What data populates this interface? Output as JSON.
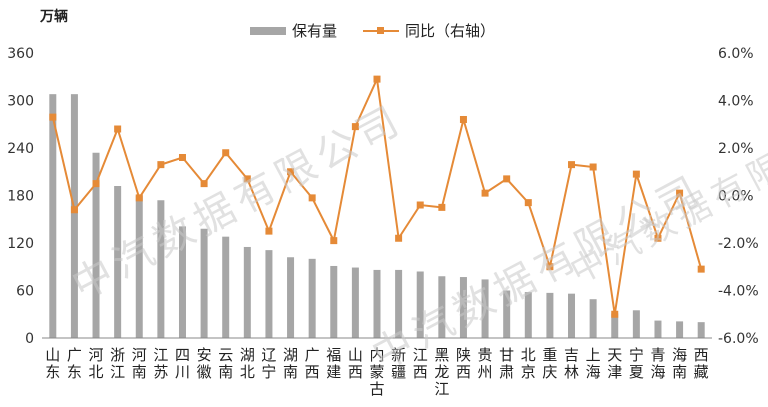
{
  "chart_data": {
    "type": "bar+line",
    "unit_label": "万辆",
    "categories": [
      "山东",
      "广东",
      "河北",
      "浙江",
      "河南",
      "江苏",
      "四川",
      "安徽",
      "云南",
      "湖北",
      "辽宁",
      "湖南",
      "广西",
      "福建",
      "山西",
      "内蒙古",
      "新疆",
      "江西",
      "黑龙江",
      "陕西",
      "贵州",
      "甘肃",
      "北京",
      "重庆",
      "吉林",
      "上海",
      "天津",
      "宁夏",
      "青海",
      "海南",
      "西藏"
    ],
    "series": [
      {
        "name": "保有量",
        "type": "bar",
        "axis": "left",
        "values": [
          308,
          308,
          234,
          192,
          180,
          174,
          141,
          138,
          128,
          115,
          111,
          102,
          100,
          91,
          89,
          86,
          86,
          84,
          78,
          77,
          74,
          60,
          58,
          57,
          56,
          49,
          31,
          35,
          22,
          21,
          20
        ]
      },
      {
        "name": "同比（右轴）",
        "type": "line",
        "axis": "right",
        "values": [
          3.3,
          -0.6,
          0.5,
          2.8,
          -0.1,
          1.3,
          1.6,
          0.5,
          1.8,
          0.7,
          -1.5,
          1.0,
          -0.1,
          -1.9,
          2.9,
          4.9,
          -1.8,
          -0.4,
          -0.5,
          3.2,
          0.1,
          0.7,
          -0.3,
          -3.0,
          1.3,
          1.2,
          -5.0,
          0.9,
          -1.8,
          0.1,
          -3.1
        ]
      }
    ],
    "y_left": {
      "min": 0,
      "max": 360,
      "ticks": [
        "0",
        "60",
        "120",
        "180",
        "240",
        "300",
        "360"
      ]
    },
    "y_right": {
      "min": -6,
      "max": 6,
      "ticks": [
        "-6.0%",
        "-4.0%",
        "-2.0%",
        "0.0%",
        "2.0%",
        "4.0%",
        "6.0%"
      ]
    },
    "legend_position": "top-center",
    "colors": {
      "bar": "#a6a6a6",
      "line": "#e58a37",
      "axis": "#888888"
    }
  },
  "legend": {
    "bar_label": "保有量",
    "line_label": "同比（右轴）"
  },
  "watermark": "中汽数据有限公司"
}
